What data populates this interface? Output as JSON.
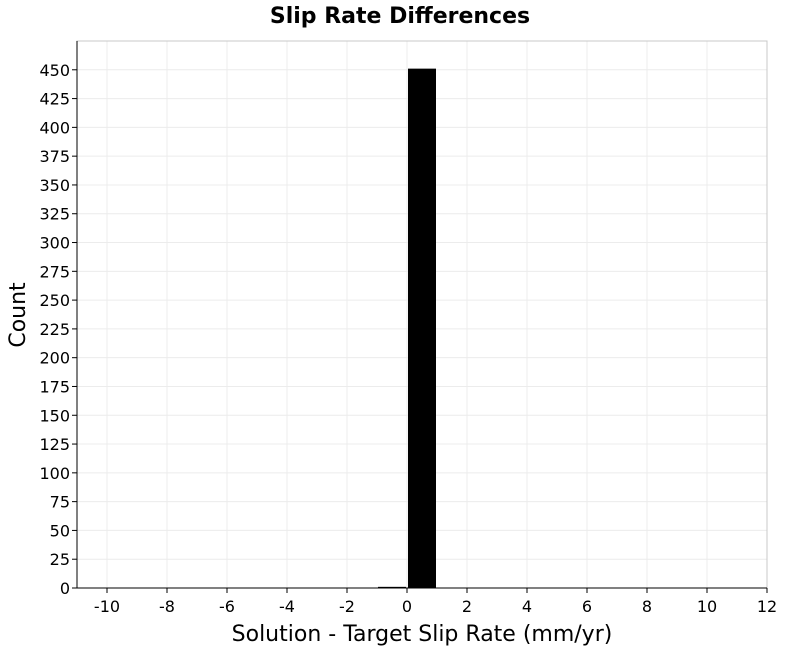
{
  "chart_data": {
    "type": "bar",
    "title": "Slip Rate Differences",
    "xlabel": "Solution - Target Slip Rate (mm/yr)",
    "ylabel": "Count",
    "xlim": [
      -11,
      12
    ],
    "ylim": [
      0,
      475
    ],
    "x_ticks": [
      -10,
      -8,
      -6,
      -4,
      -2,
      0,
      2,
      4,
      6,
      8,
      10,
      12
    ],
    "y_ticks": [
      0,
      25,
      50,
      75,
      100,
      125,
      150,
      175,
      200,
      225,
      250,
      275,
      300,
      325,
      350,
      375,
      400,
      425,
      450
    ],
    "bin_width": 1,
    "bins": [
      {
        "x_start": -1,
        "x_end": 0,
        "count": 1
      },
      {
        "x_start": 0,
        "x_end": 1,
        "count": 451
      }
    ],
    "grid": true,
    "colors": {
      "bar": "#000000",
      "grid": "#ececec",
      "frame": "#c8c8c8",
      "axis": "#000000"
    }
  }
}
